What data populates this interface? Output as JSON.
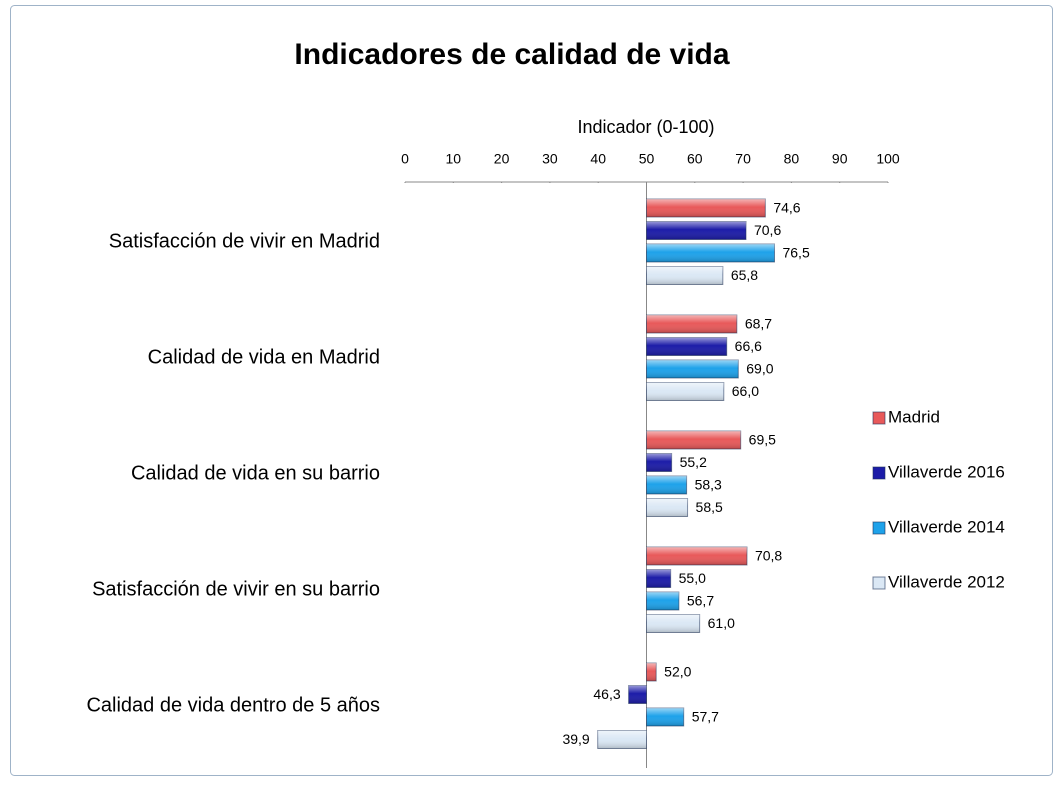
{
  "chart_data": {
    "type": "hbar",
    "title": "Indicadores de calidad de vida",
    "xlabel": "Indicador (0-100)",
    "categories": [
      "Satisfacción de vivir en Madrid",
      "Calidad de vida en Madrid",
      "Calidad de vida en su barrio",
      "Satisfacción de vivir en su barrio",
      "Calidad de vida dentro de 5 años"
    ],
    "series": [
      {
        "name": "Madrid",
        "color": "#e8595a",
        "values": [
          74.6,
          68.7,
          69.5,
          70.8,
          52.0
        ],
        "value_labels": [
          "74,6",
          "68,7",
          "69,5",
          "70,8",
          "52,0"
        ]
      },
      {
        "name": "Villaverde 2016",
        "color": "#1c1ca8",
        "values": [
          70.6,
          66.6,
          55.2,
          55.0,
          46.3
        ],
        "value_labels": [
          "70,6",
          "66,6",
          "55,2",
          "55,0",
          "46,3"
        ]
      },
      {
        "name": "Villaverde 2014",
        "color": "#1ea2ea",
        "values": [
          76.5,
          69.0,
          58.3,
          56.7,
          57.7
        ],
        "value_labels": [
          "76,5",
          "69,0",
          "58,3",
          "56,7",
          "57,7"
        ]
      },
      {
        "name": "Villaverde 2012",
        "color": "#dbe8f5",
        "values": [
          65.8,
          66.0,
          58.5,
          61.0,
          39.9
        ],
        "value_labels": [
          "65,8",
          "66,0",
          "58,5",
          "61,0",
          "39,9"
        ]
      }
    ],
    "xlim": [
      0,
      100
    ],
    "xticks": [
      0,
      10,
      20,
      30,
      40,
      50,
      60,
      70,
      80,
      90,
      100
    ],
    "baseline": 50,
    "legend": "right"
  }
}
